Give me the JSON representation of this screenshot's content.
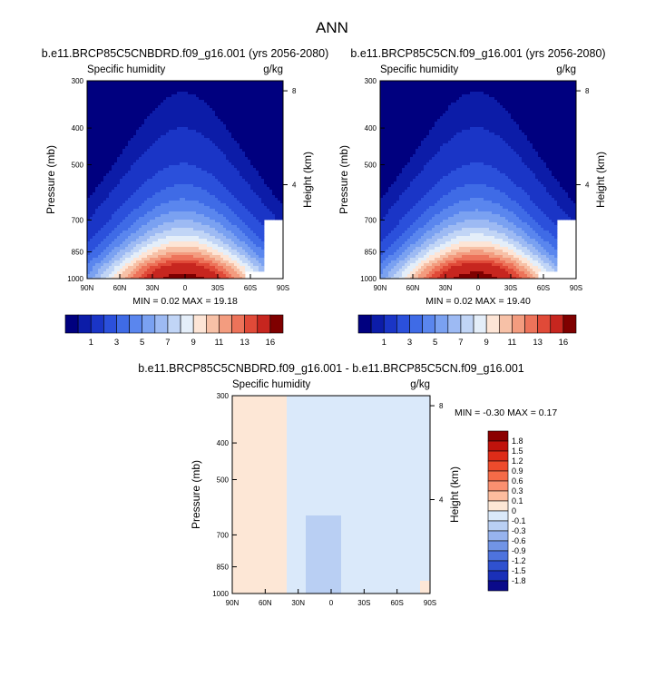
{
  "figure_title": "ANN",
  "chart_data": [
    {
      "type": "heatmap",
      "title": "b.e11.BRCP85C5CNBDRD.f09_g16.001 (yrs 2056-2080)",
      "left_label": "Specific humidity",
      "right_label": "g/kg",
      "xlabel": "",
      "ylabel": "Pressure (mb)",
      "y2label": "Height (km)",
      "x_ticks": [
        "90N",
        "60N",
        "30N",
        "0",
        "30S",
        "60S",
        "90S"
      ],
      "x_range": [
        90,
        -90
      ],
      "y_ticks": [
        "300",
        "400",
        "500",
        "700",
        "850",
        "1000"
      ],
      "y_range_mb": [
        300,
        1000
      ],
      "y2_ticks": [
        "8",
        "4"
      ],
      "min": 0.02,
      "max": 19.18,
      "stats_text": "MIN =   0.02  MAX =  19.18",
      "peak": 18.8,
      "peak_lat": 2
    },
    {
      "type": "heatmap",
      "title": "b.e11.BRCP85C5CN.f09_g16.001 (yrs 2056-2080)",
      "left_label": "Specific humidity",
      "right_label": "g/kg",
      "xlabel": "",
      "ylabel": "Pressure (mb)",
      "y2label": "Height (km)",
      "x_ticks": [
        "90N",
        "60N",
        "30N",
        "0",
        "30S",
        "60S",
        "90S"
      ],
      "x_range": [
        90,
        -90
      ],
      "y_ticks": [
        "300",
        "400",
        "500",
        "700",
        "850",
        "1000"
      ],
      "y_range_mb": [
        300,
        1000
      ],
      "y2_ticks": [
        "8",
        "4"
      ],
      "min": 0.02,
      "max": 19.4,
      "stats_text": "MIN =   0.02  MAX =  19.40",
      "peak": 19.0,
      "peak_lat": 2
    },
    {
      "type": "heatmap",
      "title": "b.e11.BRCP85C5CNBDRD.f09_g16.001 - b.e11.BRCP85C5CN.f09_g16.001",
      "left_label": "Specific humidity",
      "right_label": "g/kg",
      "xlabel": "",
      "ylabel": "Pressure (mb)",
      "y2label": "Height (km)",
      "x_ticks": [
        "90N",
        "60N",
        "30N",
        "0",
        "30S",
        "60S",
        "90S"
      ],
      "x_range": [
        90,
        -90
      ],
      "y_ticks": [
        "300",
        "400",
        "500",
        "700",
        "850",
        "1000"
      ],
      "y_range_mb": [
        300,
        1000
      ],
      "y2_ticks": [
        "8",
        "4"
      ],
      "min": -0.3,
      "max": 0.17,
      "stats_text": "MIN =  -0.30  MAX =   0.17",
      "regions": [
        {
          "name": "positive-north",
          "lat_range": [
            85,
            35
          ],
          "value": 0.05
        },
        {
          "name": "negative-tropics",
          "lat_range": [
            35,
            5
          ],
          "value": -0.05
        },
        {
          "name": "negative-lower-tropics",
          "lat_range": [
            22,
            -10
          ],
          "p_range": [
            620,
            1000
          ],
          "value": -0.12
        },
        {
          "name": "positive-south-polar",
          "lat_range": [
            -80,
            -90
          ],
          "p_range": [
            930,
            1000
          ],
          "value": 0.02
        }
      ]
    }
  ],
  "colorbars": {
    "top": {
      "labels": [
        "1",
        "3",
        "5",
        "7",
        "9",
        "11",
        "13",
        "16"
      ],
      "levels": [
        0.5,
        1,
        2,
        3,
        4,
        5,
        6,
        7,
        8,
        9,
        10,
        11,
        12,
        13,
        14,
        16
      ],
      "colors": [
        "#00007f",
        "#0c1ca8",
        "#1a35c6",
        "#2b50db",
        "#3f6be6",
        "#5a86ee",
        "#7aa1f1",
        "#9dbaf3",
        "#c1d5f6",
        "#e4eef9",
        "#fde5d6",
        "#f7c1a7",
        "#f39c7f",
        "#ed735a",
        "#e04a38",
        "#c7261f",
        "#7f0000"
      ]
    },
    "diff": {
      "labels": [
        "1.8",
        "1.5",
        "1.2",
        "0.9",
        "0.6",
        "0.3",
        "0.1",
        "0",
        "-0.1",
        "-0.3",
        "-0.6",
        "-0.9",
        "-1.2",
        "-1.5",
        "-1.8"
      ],
      "colors": [
        "#8b0000",
        "#c0130c",
        "#dd2c18",
        "#ee4b2c",
        "#f56b48",
        "#fa9070",
        "#fdbc9e",
        "#fde7d6",
        "#dae9fa",
        "#b9cff3",
        "#97b3ee",
        "#7194e6",
        "#4e73dd",
        "#2f51cf",
        "#1a30b8",
        "#0a0a8a"
      ]
    }
  }
}
